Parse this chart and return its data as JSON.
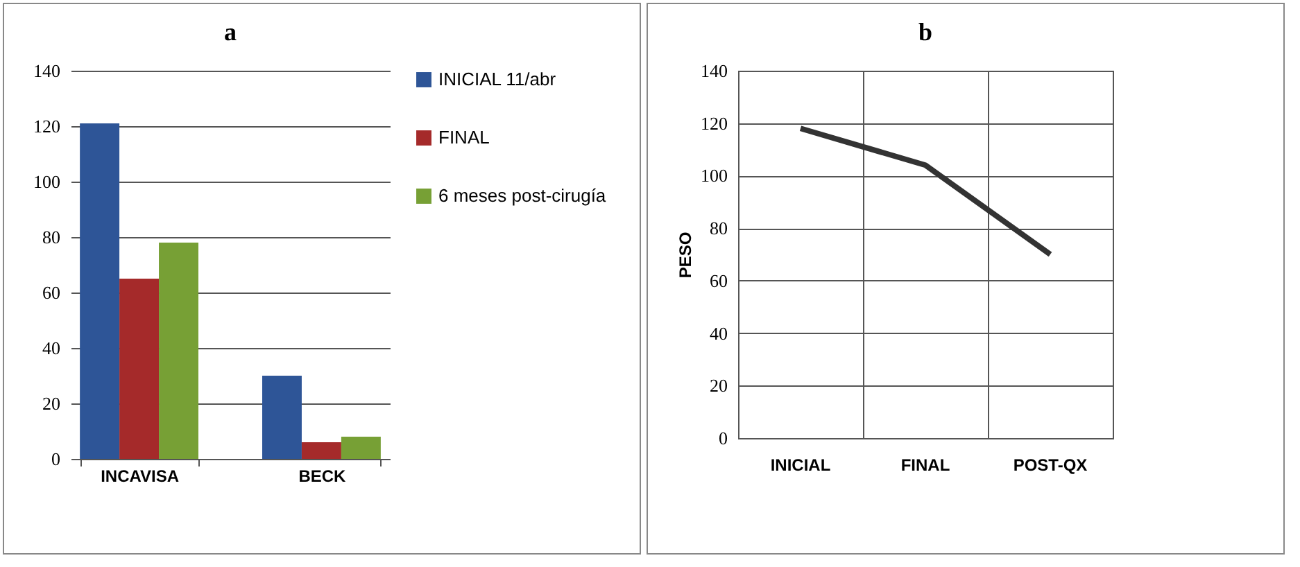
{
  "chart_data": [
    {
      "type": "bar",
      "title": "a",
      "categories": [
        "INCAVISA",
        "BECK"
      ],
      "series": [
        {
          "name": "INICIAL 11/abr",
          "color": "#2e5597",
          "values": [
            121,
            30
          ]
        },
        {
          "name": "FINAL",
          "color": "#a52a2a",
          "values": [
            65,
            6
          ]
        },
        {
          "name": "6 meses post-cirugía",
          "color": "#77a035",
          "values": [
            78,
            8
          ]
        }
      ],
      "ylim": [
        0,
        140
      ],
      "yticks": [
        0,
        20,
        40,
        60,
        80,
        100,
        120,
        140
      ],
      "grid": "y",
      "legend": "right"
    },
    {
      "type": "line",
      "title": "b",
      "ylabel": "PESO",
      "categories": [
        "INICIAL",
        "FINAL",
        "POST-QX"
      ],
      "series": [
        {
          "color": "#333333",
          "values": [
            118,
            104,
            70
          ]
        }
      ],
      "ylim": [
        0,
        140
      ],
      "yticks": [
        0,
        20,
        40,
        60,
        80,
        100,
        120,
        140
      ],
      "grid": true
    }
  ]
}
